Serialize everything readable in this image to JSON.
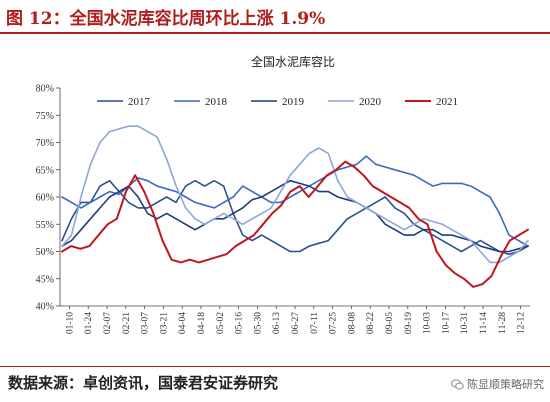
{
  "figure_title": "图 12：全国水泥库容比周环比上涨 1.9%",
  "source_text": "数据来源：卓创资讯，国泰君安证券研究",
  "watermark_text": "陈显顺策略研究",
  "watermark_icon": "wechat-icon",
  "chart_data": {
    "type": "line",
    "title": "全国水泥库容比",
    "ylim": [
      40,
      80
    ],
    "yticks": [
      "40%",
      "45%",
      "50%",
      "55%",
      "60%",
      "65%",
      "70%",
      "75%",
      "80%"
    ],
    "x_labels": [
      "01-10",
      "01-24",
      "02-07",
      "02-21",
      "03-07",
      "03-21",
      "04-04",
      "04-18",
      "05-02",
      "05-16",
      "05-30",
      "06-13",
      "06-27",
      "07-11",
      "07-25",
      "08-08",
      "08-22",
      "09-05",
      "09-19",
      "10-03",
      "10-17",
      "10-31",
      "11-14",
      "11-28",
      "12-12"
    ],
    "grid": false,
    "legend_position": "top",
    "series": [
      {
        "name": "2017",
        "color": "#2e4f8f",
        "values": [
          52,
          56,
          59,
          59,
          62,
          63,
          61,
          59,
          58,
          58,
          59,
          60,
          59,
          62,
          63,
          62,
          63,
          62,
          57,
          53,
          52,
          53,
          52,
          51,
          50,
          50,
          51,
          51.5,
          52,
          54,
          56,
          57,
          58,
          59,
          60,
          58,
          57,
          55,
          54,
          53,
          52,
          51,
          50,
          51,
          52,
          51,
          50,
          49.5,
          50,
          51
        ]
      },
      {
        "name": "2018",
        "color": "#3f67c2",
        "values": [
          60,
          59,
          58,
          59,
          60,
          61,
          60.5,
          62,
          63.5,
          63,
          62,
          61.5,
          61,
          60,
          59,
          58.5,
          58,
          59,
          60,
          62,
          61,
          60,
          59,
          59,
          60,
          61,
          62,
          63,
          64,
          65,
          65.5,
          66,
          67.5,
          66,
          65.5,
          65,
          64.5,
          64,
          63,
          62,
          62.5,
          62.5,
          62.5,
          62,
          61,
          60,
          57,
          53,
          52,
          51
        ]
      },
      {
        "name": "2019",
        "color": "#1f3d7a",
        "values": [
          51,
          52,
          54,
          56,
          58,
          60,
          61,
          62,
          60,
          57,
          56,
          57,
          56,
          55,
          54,
          55,
          56,
          56,
          57,
          58,
          59.5,
          60,
          61,
          62,
          63,
          62.5,
          62,
          61,
          61,
          60,
          59.5,
          59,
          58,
          57,
          55,
          54,
          53,
          53,
          54,
          54,
          53,
          53,
          52.5,
          52,
          51,
          50.5,
          50,
          50,
          50.5,
          51
        ]
      },
      {
        "name": "2020",
        "color": "#8ea6dc",
        "values": [
          51,
          53,
          60,
          66,
          70,
          72,
          72.5,
          73,
          73,
          72,
          71,
          67,
          62,
          58,
          56,
          55,
          56,
          57,
          56,
          55,
          56,
          57,
          58,
          61,
          64,
          66,
          68,
          69,
          68,
          63,
          60,
          59,
          58,
          57,
          56,
          55,
          54,
          55,
          56,
          55.5,
          55,
          54,
          53,
          52,
          50,
          48,
          48,
          49,
          50,
          52
        ]
      },
      {
        "name": "2021",
        "color": "#c0161f",
        "values": [
          50,
          51,
          50.5,
          51,
          53,
          55,
          56,
          61,
          64,
          61,
          57,
          52,
          48.5,
          48,
          48.5,
          48,
          48.5,
          49,
          49.5,
          51,
          52,
          53,
          55,
          57,
          58.5,
          61,
          62,
          60,
          62,
          64,
          65,
          66.5,
          65.5,
          64,
          62,
          61,
          60,
          59,
          58,
          56,
          55,
          50,
          47.5,
          46,
          45,
          43.5,
          44,
          45.5,
          49,
          52,
          53,
          54
        ]
      }
    ]
  }
}
